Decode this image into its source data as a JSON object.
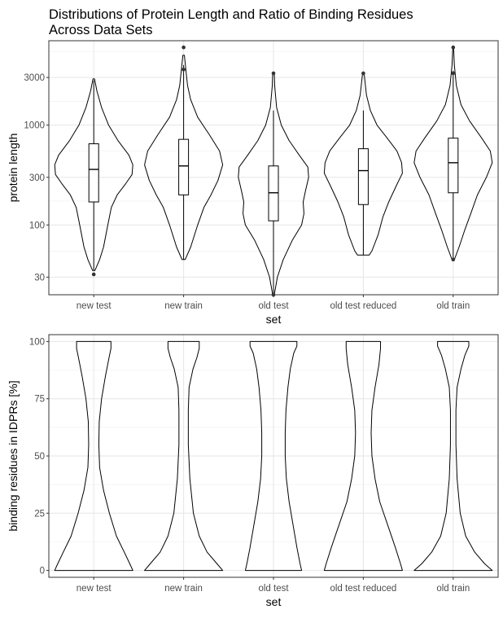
{
  "title": "Distributions of Protein Length and Ratio of Binding Residues Across Data Sets",
  "chart_data": [
    {
      "type": "violin",
      "title": "Distributions of Protein Length and Ratio of Binding Residues Across Data Sets",
      "xlabel": "set",
      "ylabel": "protein length",
      "yscale": "log10",
      "ylim": [
        20,
        7000
      ],
      "yticks": [
        30,
        100,
        300,
        1000,
        3000
      ],
      "ytick_labels": [
        "30",
        "100",
        "300",
        "1000",
        "3000"
      ],
      "categories": [
        "new test",
        "new train",
        "old test",
        "old test reduced",
        "old train"
      ],
      "grid": true,
      "boxplot": [
        {
          "set": "new test",
          "whisker_low": 35,
          "q1": 170,
          "median": 360,
          "q3": 650,
          "whisker_high": 2800,
          "outliers": [
            32
          ]
        },
        {
          "set": "new train",
          "whisker_low": 45,
          "q1": 200,
          "median": 390,
          "q3": 720,
          "whisker_high": 4000,
          "outliers": [
            3600,
            6000
          ]
        },
        {
          "set": "old test",
          "whisker_low": 20,
          "q1": 110,
          "median": 210,
          "q3": 390,
          "whisker_high": 1400,
          "outliers": [
            3300,
            20
          ]
        },
        {
          "set": "old test reduced",
          "whisker_low": 50,
          "q1": 160,
          "median": 350,
          "q3": 580,
          "whisker_high": 1400,
          "outliers": [
            3300
          ]
        },
        {
          "set": "old train",
          "whisker_low": 45,
          "q1": 210,
          "median": 420,
          "q3": 740,
          "whisker_high": 3500,
          "outliers": [
            3300,
            6000,
            45
          ]
        }
      ],
      "violins": [
        {
          "set": "new test",
          "min": 35,
          "max": 2900,
          "profile": [
            [
              35,
              0.03
            ],
            [
              45,
              0.15
            ],
            [
              60,
              0.25
            ],
            [
              100,
              0.36
            ],
            [
              150,
              0.45
            ],
            [
              200,
              0.6
            ],
            [
              260,
              0.82
            ],
            [
              320,
              0.98
            ],
            [
              400,
              1.0
            ],
            [
              500,
              0.9
            ],
            [
              700,
              0.62
            ],
            [
              1000,
              0.38
            ],
            [
              1500,
              0.2
            ],
            [
              2200,
              0.08
            ],
            [
              2900,
              0.02
            ]
          ]
        },
        {
          "set": "new train",
          "min": 45,
          "max": 5000,
          "profile": [
            [
              45,
              0.04
            ],
            [
              60,
              0.18
            ],
            [
              100,
              0.36
            ],
            [
              150,
              0.52
            ],
            [
              200,
              0.7
            ],
            [
              280,
              0.88
            ],
            [
              400,
              1.0
            ],
            [
              550,
              0.92
            ],
            [
              800,
              0.66
            ],
            [
              1200,
              0.36
            ],
            [
              1800,
              0.18
            ],
            [
              2500,
              0.1
            ],
            [
              3500,
              0.06
            ],
            [
              5000,
              0.02
            ]
          ]
        },
        {
          "set": "old test",
          "min": 20,
          "max": 3400,
          "profile": [
            [
              20,
              0.02
            ],
            [
              30,
              0.1
            ],
            [
              45,
              0.25
            ],
            [
              70,
              0.48
            ],
            [
              100,
              0.72
            ],
            [
              130,
              0.78
            ],
            [
              170,
              0.76
            ],
            [
              220,
              0.82
            ],
            [
              300,
              0.9
            ],
            [
              380,
              0.88
            ],
            [
              500,
              0.66
            ],
            [
              700,
              0.4
            ],
            [
              1000,
              0.2
            ],
            [
              1500,
              0.08
            ],
            [
              2500,
              0.03
            ],
            [
              3400,
              0.02
            ]
          ]
        },
        {
          "set": "old test reduced",
          "min": 50,
          "max": 3300,
          "profile": [
            [
              50,
              0.15
            ],
            [
              55,
              0.22
            ],
            [
              80,
              0.38
            ],
            [
              120,
              0.5
            ],
            [
              170,
              0.65
            ],
            [
              250,
              0.85
            ],
            [
              330,
              1.0
            ],
            [
              420,
              0.98
            ],
            [
              550,
              0.86
            ],
            [
              750,
              0.6
            ],
            [
              1000,
              0.35
            ],
            [
              1400,
              0.18
            ],
            [
              2000,
              0.08
            ],
            [
              3300,
              0.02
            ]
          ]
        },
        {
          "set": "old train",
          "min": 45,
          "max": 6000,
          "profile": [
            [
              45,
              0.03
            ],
            [
              60,
              0.15
            ],
            [
              90,
              0.3
            ],
            [
              130,
              0.45
            ],
            [
              200,
              0.62
            ],
            [
              300,
              0.85
            ],
            [
              420,
              1.0
            ],
            [
              550,
              0.95
            ],
            [
              750,
              0.72
            ],
            [
              1100,
              0.42
            ],
            [
              1600,
              0.2
            ],
            [
              2500,
              0.08
            ],
            [
              4000,
              0.03
            ],
            [
              6000,
              0.01
            ]
          ]
        }
      ]
    },
    {
      "type": "violin",
      "xlabel": "set",
      "ylabel": "binding residues in IDPRs [%]",
      "ylim": [
        -3,
        103
      ],
      "yticks": [
        0,
        25,
        50,
        75,
        100
      ],
      "ytick_labels": [
        "0",
        "25",
        "50",
        "75",
        "100"
      ],
      "categories": [
        "new test",
        "new train",
        "old test",
        "old test reduced",
        "old train"
      ],
      "grid": true,
      "violins": [
        {
          "set": "new test",
          "min": 0,
          "max": 100,
          "profile": [
            [
              0,
              1.0
            ],
            [
              3,
              0.92
            ],
            [
              8,
              0.78
            ],
            [
              15,
              0.58
            ],
            [
              25,
              0.4
            ],
            [
              35,
              0.25
            ],
            [
              45,
              0.15
            ],
            [
              55,
              0.13
            ],
            [
              65,
              0.14
            ],
            [
              75,
              0.2
            ],
            [
              85,
              0.3
            ],
            [
              92,
              0.38
            ],
            [
              97,
              0.44
            ],
            [
              100,
              0.44
            ]
          ]
        },
        {
          "set": "new train",
          "min": 0,
          "max": 100,
          "profile": [
            [
              0,
              1.0
            ],
            [
              3,
              0.85
            ],
            [
              8,
              0.6
            ],
            [
              15,
              0.4
            ],
            [
              25,
              0.25
            ],
            [
              40,
              0.16
            ],
            [
              55,
              0.12
            ],
            [
              70,
              0.12
            ],
            [
              80,
              0.14
            ],
            [
              88,
              0.24
            ],
            [
              93,
              0.34
            ],
            [
              97,
              0.4
            ],
            [
              100,
              0.4
            ]
          ]
        },
        {
          "set": "old test",
          "min": 0,
          "max": 100,
          "profile": [
            [
              0,
              0.72
            ],
            [
              3,
              0.68
            ],
            [
              10,
              0.6
            ],
            [
              20,
              0.5
            ],
            [
              30,
              0.4
            ],
            [
              40,
              0.33
            ],
            [
              50,
              0.3
            ],
            [
              60,
              0.3
            ],
            [
              70,
              0.32
            ],
            [
              80,
              0.37
            ],
            [
              88,
              0.43
            ],
            [
              95,
              0.52
            ],
            [
              98,
              0.6
            ],
            [
              100,
              0.6
            ]
          ]
        },
        {
          "set": "old test reduced",
          "min": 0,
          "max": 100,
          "profile": [
            [
              0,
              1.0
            ],
            [
              3,
              0.95
            ],
            [
              10,
              0.82
            ],
            [
              20,
              0.62
            ],
            [
              30,
              0.42
            ],
            [
              40,
              0.3
            ],
            [
              50,
              0.22
            ],
            [
              60,
              0.2
            ],
            [
              70,
              0.22
            ],
            [
              80,
              0.3
            ],
            [
              90,
              0.4
            ],
            [
              97,
              0.44
            ],
            [
              100,
              0.44
            ]
          ]
        },
        {
          "set": "old train",
          "min": 0,
          "max": 100,
          "profile": [
            [
              0,
              1.0
            ],
            [
              3,
              0.8
            ],
            [
              8,
              0.55
            ],
            [
              15,
              0.32
            ],
            [
              25,
              0.18
            ],
            [
              40,
              0.1
            ],
            [
              55,
              0.07
            ],
            [
              70,
              0.07
            ],
            [
              80,
              0.1
            ],
            [
              88,
              0.2
            ],
            [
              94,
              0.3
            ],
            [
              98,
              0.4
            ],
            [
              100,
              0.4
            ]
          ]
        }
      ]
    }
  ]
}
